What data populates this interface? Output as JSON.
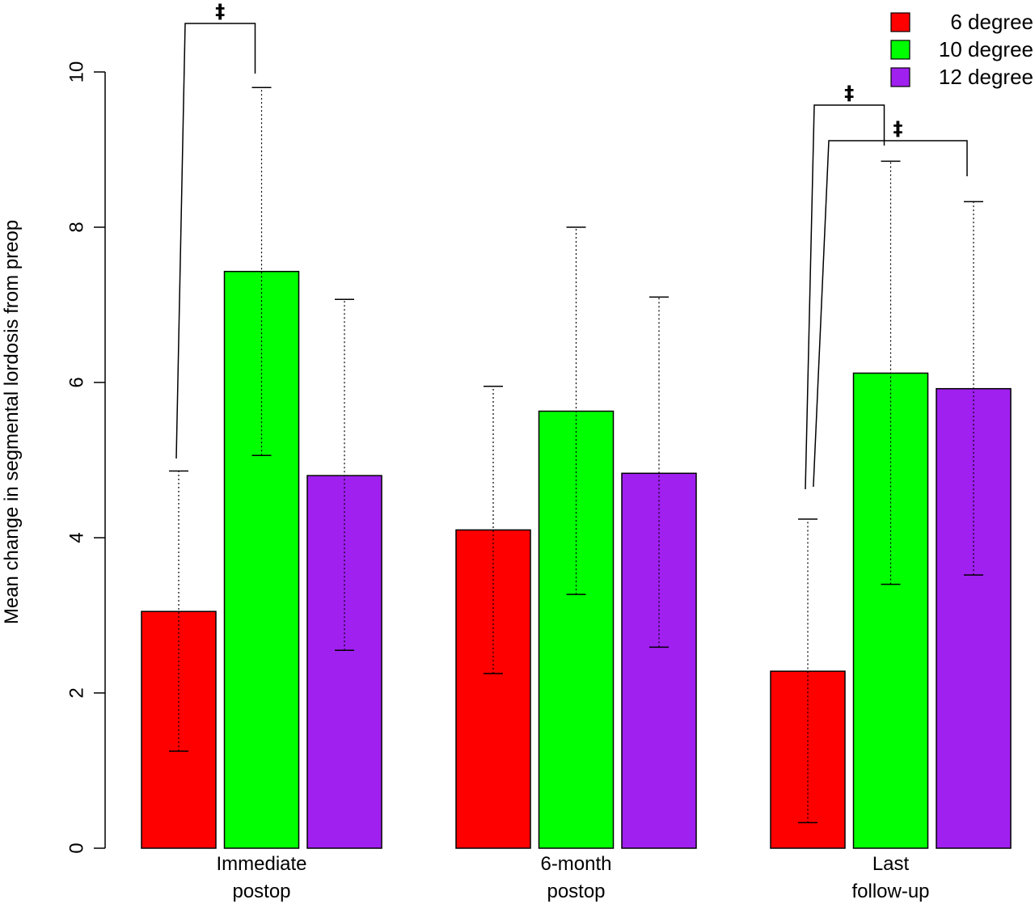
{
  "chart_data": {
    "type": "bar",
    "title": "",
    "xlabel": "",
    "ylabel": "Mean change in segmental lordosis from preop",
    "ylim": [
      0,
      10
    ],
    "yticks": [
      0,
      2,
      4,
      6,
      8,
      10
    ],
    "categories": [
      [
        "Immediate",
        "postop"
      ],
      [
        "6-month",
        "postop"
      ],
      [
        "Last",
        "follow-up"
      ]
    ],
    "series": [
      {
        "name": "6 degree",
        "color": "#ff0000",
        "values": [
          3.05,
          4.1,
          2.28
        ],
        "err_low": [
          1.25,
          2.25,
          0.33
        ],
        "err_high": [
          4.86,
          5.95,
          4.24
        ]
      },
      {
        "name": "10 degree",
        "color": "#00ff00",
        "values": [
          7.43,
          5.63,
          6.12
        ],
        "err_low": [
          5.06,
          3.27,
          3.4
        ],
        "err_high": [
          9.8,
          8.0,
          8.85
        ]
      },
      {
        "name": "12 degree",
        "color": "#a020f0",
        "values": [
          4.8,
          4.83,
          5.92
        ],
        "err_low": [
          2.55,
          2.59,
          3.52
        ],
        "err_high": [
          7.07,
          7.1,
          8.33
        ]
      }
    ],
    "legend_position": "top-right",
    "significance": [
      {
        "category": 0,
        "from_series": 0,
        "to_series": 1,
        "symbol": "‡"
      },
      {
        "category": 2,
        "from_series": 0,
        "to_series": 1,
        "symbol": "‡"
      },
      {
        "category": 2,
        "from_series": 0,
        "to_series": 2,
        "symbol": "‡"
      }
    ]
  }
}
